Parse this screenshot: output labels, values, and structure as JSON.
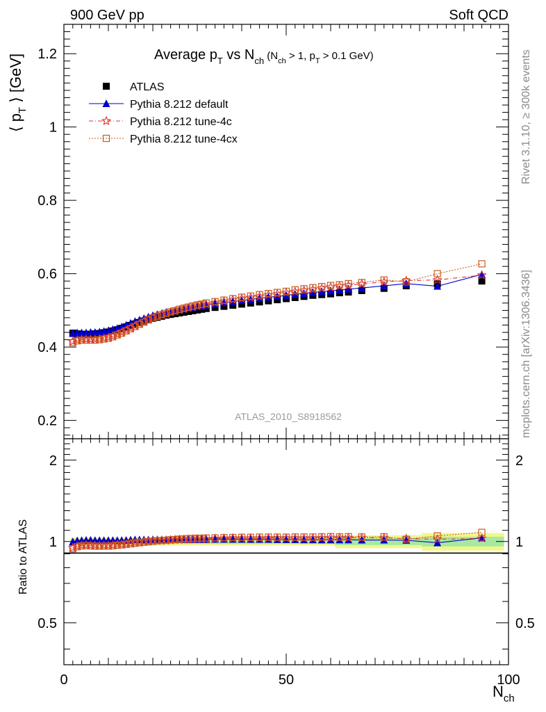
{
  "header": {
    "left": "900 GeV pp",
    "right": "Soft QCD"
  },
  "side_text": {
    "rivet": "Rivet 3.1.10, ≥ 300k events",
    "mcplots": "mcplots.cern.ch [arXiv:1306.3436]"
  },
  "analysis_label": "ATLAS_2010_S8918562",
  "title": {
    "main": "Average p",
    "main_sub": "T",
    "vs": " vs N",
    "vs_sub": "ch",
    "cut1": " (N",
    "cut1_sub": "ch",
    "cut1_rest": " > 1, p",
    "cut2_sub": "T",
    "cut2_rest": " > 0.1 GeV)"
  },
  "y_label": {
    "open": "⟨ p",
    "sub": "T",
    "close": " ⟩  [GeV]"
  },
  "ratio_label": "Ratio to ATLAS",
  "x_label": {
    "main": "N",
    "sub": "ch"
  },
  "legend": [
    {
      "label": "ATLAS",
      "marker": "square-filled",
      "color": "#000000"
    },
    {
      "label": "Pythia 8.212 default",
      "marker": "triangle-filled",
      "color": "#0000cc"
    },
    {
      "label": "Pythia 8.212 tune-4c",
      "marker": "star-open",
      "color": "#e03030"
    },
    {
      "label": "Pythia 8.212 tune-4cx",
      "marker": "square-open",
      "color": "#c85a1e"
    }
  ],
  "chart_data": {
    "type": "scatter",
    "x_axis": {
      "min": 0,
      "max": 100,
      "ticks": [
        0,
        50,
        100
      ]
    },
    "y_axis_main": {
      "min": 0.15,
      "max": 1.28,
      "ticks": [
        0.2,
        0.4,
        0.6,
        0.8,
        1,
        1.2
      ]
    },
    "y_axis_ratio": {
      "min": 0.35,
      "max": 2.4,
      "ticks": [
        0.5,
        1,
        2
      ]
    },
    "x": [
      2,
      3,
      4,
      5,
      6,
      7,
      8,
      9,
      10,
      11,
      12,
      13,
      14,
      15,
      16,
      17,
      18,
      19,
      20,
      21,
      22,
      23,
      24,
      25,
      26,
      27,
      28,
      29,
      30,
      31,
      32,
      34,
      36,
      38,
      40,
      42,
      44,
      46,
      48,
      50,
      52,
      54,
      56,
      58,
      60,
      62,
      64,
      67,
      72,
      77,
      84,
      94
    ],
    "series": [
      {
        "name": "ATLAS",
        "values": [
          0.438,
          0.436,
          0.435,
          0.434,
          0.435,
          0.436,
          0.437,
          0.439,
          0.441,
          0.444,
          0.447,
          0.451,
          0.455,
          0.459,
          0.463,
          0.467,
          0.471,
          0.475,
          0.478,
          0.481,
          0.484,
          0.487,
          0.489,
          0.491,
          0.493,
          0.495,
          0.497,
          0.499,
          0.501,
          0.503,
          0.505,
          0.508,
          0.511,
          0.514,
          0.517,
          0.52,
          0.523,
          0.526,
          0.529,
          0.532,
          0.535,
          0.538,
          0.541,
          0.543,
          0.545,
          0.548,
          0.55,
          0.554,
          0.56,
          0.567,
          0.572,
          0.58
        ]
      },
      {
        "name": "Pythia 8.212 default",
        "values": [
          0.437,
          0.439,
          0.439,
          0.439,
          0.44,
          0.44,
          0.441,
          0.443,
          0.445,
          0.448,
          0.451,
          0.455,
          0.46,
          0.465,
          0.47,
          0.474,
          0.478,
          0.482,
          0.486,
          0.489,
          0.492,
          0.495,
          0.497,
          0.5,
          0.502,
          0.504,
          0.506,
          0.508,
          0.51,
          0.512,
          0.514,
          0.518,
          0.521,
          0.524,
          0.527,
          0.53,
          0.533,
          0.536,
          0.538,
          0.541,
          0.544,
          0.546,
          0.549,
          0.551,
          0.553,
          0.556,
          0.558,
          0.561,
          0.567,
          0.573,
          0.566,
          0.598
        ]
      },
      {
        "name": "Pythia 8.212 tune-4c",
        "values": [
          0.415,
          0.419,
          0.421,
          0.421,
          0.421,
          0.421,
          0.422,
          0.424,
          0.426,
          0.43,
          0.435,
          0.44,
          0.446,
          0.452,
          0.458,
          0.464,
          0.47,
          0.475,
          0.48,
          0.484,
          0.488,
          0.491,
          0.495,
          0.498,
          0.501,
          0.504,
          0.507,
          0.509,
          0.512,
          0.514,
          0.516,
          0.521,
          0.525,
          0.529,
          0.532,
          0.535,
          0.538,
          0.542,
          0.545,
          0.548,
          0.551,
          0.554,
          0.557,
          0.56,
          0.563,
          0.566,
          0.568,
          0.572,
          0.578,
          0.581,
          0.583,
          0.596
        ]
      },
      {
        "name": "Pythia 8.212 tune-4cx",
        "values": [
          0.412,
          0.417,
          0.419,
          0.419,
          0.419,
          0.419,
          0.42,
          0.422,
          0.424,
          0.428,
          0.433,
          0.438,
          0.444,
          0.45,
          0.456,
          0.462,
          0.468,
          0.474,
          0.479,
          0.484,
          0.488,
          0.492,
          0.496,
          0.499,
          0.503,
          0.506,
          0.509,
          0.512,
          0.515,
          0.517,
          0.52,
          0.524,
          0.528,
          0.532,
          0.536,
          0.539,
          0.543,
          0.546,
          0.549,
          0.552,
          0.556,
          0.559,
          0.562,
          0.565,
          0.568,
          0.57,
          0.573,
          0.576,
          0.583,
          0.578,
          0.6,
          0.627
        ]
      }
    ]
  }
}
